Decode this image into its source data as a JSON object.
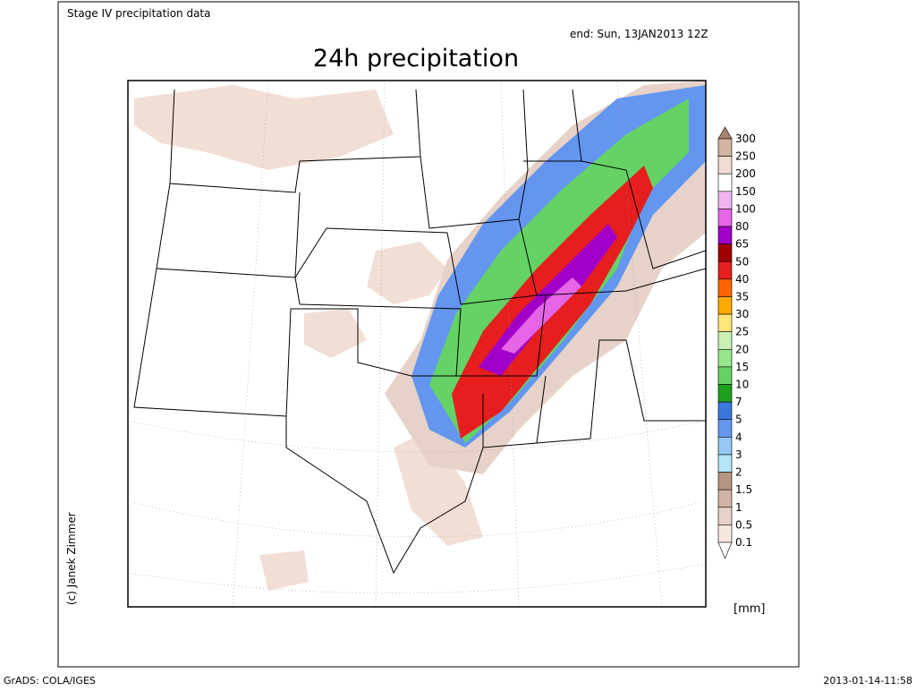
{
  "header": {
    "source": "Stage IV precipitation data",
    "valid": "end: Sun, 13JAN2013 12Z",
    "title": "24h precipitation"
  },
  "legend": {
    "unit": "[mm]",
    "top_color": "#a88470",
    "levels": [
      {
        "label": "300",
        "color": "#d2b4a0"
      },
      {
        "label": "250",
        "color": "#f0dcd2"
      },
      {
        "label": "200",
        "color": "#ffffff"
      },
      {
        "label": "150",
        "color": "#f0b4f0"
      },
      {
        "label": "100",
        "color": "#e664e6"
      },
      {
        "label": "80",
        "color": "#a000c8"
      },
      {
        "label": "65",
        "color": "#a00000"
      },
      {
        "label": "50",
        "color": "#e61e1e"
      },
      {
        "label": "40",
        "color": "#ff6400"
      },
      {
        "label": "35",
        "color": "#ffaa00"
      },
      {
        "label": "30",
        "color": "#ffe678"
      },
      {
        "label": "25",
        "color": "#c8f0b4"
      },
      {
        "label": "20",
        "color": "#96e68c"
      },
      {
        "label": "15",
        "color": "#64d264"
      },
      {
        "label": "10",
        "color": "#1ea01e"
      },
      {
        "label": "7",
        "color": "#3c78dc"
      },
      {
        "label": "5",
        "color": "#6496f0"
      },
      {
        "label": "4",
        "color": "#96c8f5"
      },
      {
        "label": "3",
        "color": "#b4e6f5"
      },
      {
        "label": "2",
        "color": "#b49682"
      },
      {
        "label": "1.5",
        "color": "#d2b4a5"
      },
      {
        "label": "1",
        "color": "#e6d2c8"
      },
      {
        "label": "0.5",
        "color": "#f5e6e0"
      },
      {
        "label": "0.1",
        "color": "#ffffff"
      }
    ]
  },
  "credit": "(c) Janek Zimmer",
  "footer": {
    "left": "GrADS: COLA/IGES",
    "right": "2013-01-14-11:58"
  }
}
